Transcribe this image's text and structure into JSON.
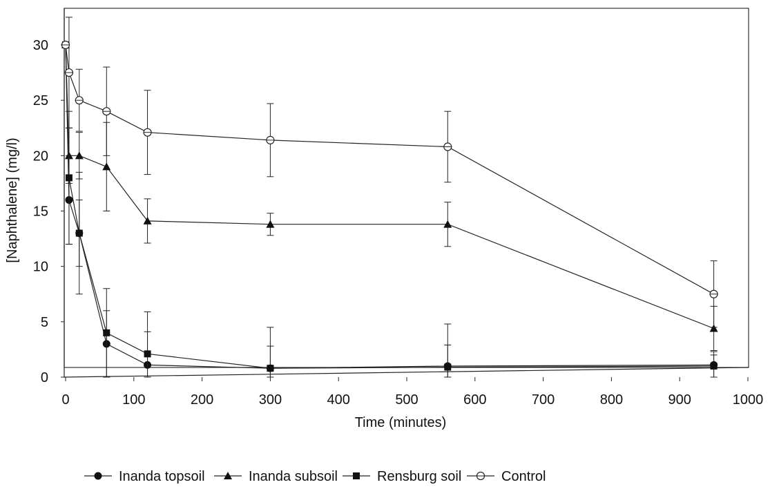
{
  "chart_data": {
    "type": "line",
    "xlabel": "Time (minutes)",
    "ylabel": "[Naphthalene] (mg/l)",
    "xlim": [
      0,
      1000
    ],
    "ylim": [
      0,
      30
    ],
    "x_ticks": [
      "0",
      "100",
      "200",
      "300",
      "400",
      "500",
      "600",
      "700",
      "800",
      "900",
      "1000"
    ],
    "y_ticks": [
      "0",
      "5",
      "10",
      "15",
      "20",
      "25",
      "30"
    ],
    "grid": false,
    "legend_position": "bottom",
    "series": [
      {
        "name": "Inanda topsoil",
        "marker": "circle-filled",
        "points": [
          {
            "x": 0,
            "y": 30,
            "err": 0
          },
          {
            "x": 5,
            "y": 16,
            "err": 4
          },
          {
            "x": 20,
            "y": 13,
            "err": 3
          },
          {
            "x": 60,
            "y": 3,
            "err": 3
          },
          {
            "x": 120,
            "y": 1.1,
            "err": 3
          },
          {
            "x": 300,
            "y": 0.8,
            "err": 3.7
          },
          {
            "x": 560,
            "y": 1.0,
            "err": 3.8
          },
          {
            "x": 950,
            "y": 1.1,
            "err": 1.2
          }
        ]
      },
      {
        "name": "Inanda subsoil",
        "marker": "triangle-filled",
        "points": [
          {
            "x": 0,
            "y": 30,
            "err": 0
          },
          {
            "x": 5,
            "y": 20,
            "err": 2.5
          },
          {
            "x": 20,
            "y": 20,
            "err": 2.1
          },
          {
            "x": 60,
            "y": 19,
            "err": 4
          },
          {
            "x": 120,
            "y": 14.1,
            "err": 2
          },
          {
            "x": 300,
            "y": 13.8,
            "err": 1
          },
          {
            "x": 560,
            "y": 13.8,
            "err": 2
          },
          {
            "x": 950,
            "y": 4.4,
            "err": 2
          }
        ]
      },
      {
        "name": "Rensburg soil",
        "marker": "square-filled",
        "points": [
          {
            "x": 0,
            "y": 30,
            "err": 0
          },
          {
            "x": 5,
            "y": 18,
            "err": 6
          },
          {
            "x": 20,
            "y": 13,
            "err": 5.5
          },
          {
            "x": 60,
            "y": 4,
            "err": 4
          },
          {
            "x": 120,
            "y": 2.1,
            "err": 3.8
          },
          {
            "x": 300,
            "y": 0.8,
            "err": 2
          },
          {
            "x": 560,
            "y": 0.9,
            "err": 2
          },
          {
            "x": 950,
            "y": 1.0,
            "err": 1
          }
        ]
      },
      {
        "name": "Control",
        "marker": "circle-open",
        "points": [
          {
            "x": 0,
            "y": 30,
            "err": 0
          },
          {
            "x": 5,
            "y": 27.5,
            "err": 5
          },
          {
            "x": 20,
            "y": 25,
            "err": 2.8
          },
          {
            "x": 60,
            "y": 24,
            "err": 4
          },
          {
            "x": 120,
            "y": 22.1,
            "err": 3.8
          },
          {
            "x": 300,
            "y": 21.4,
            "err": 3.3
          },
          {
            "x": 560,
            "y": 20.8,
            "err": 3.2
          },
          {
            "x": 950,
            "y": 7.5,
            "err": 3
          }
        ]
      }
    ]
  }
}
